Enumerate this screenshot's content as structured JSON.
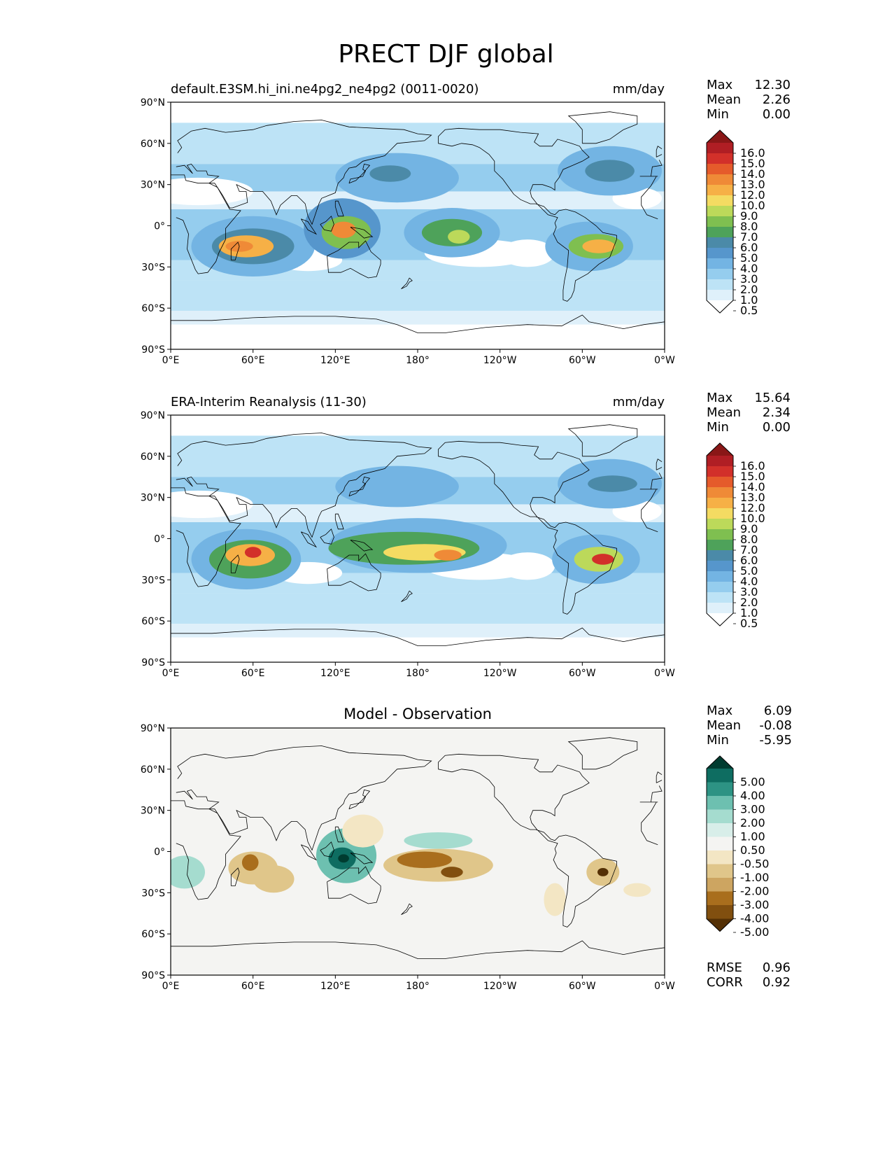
{
  "title": "PRECT DJF global",
  "panels": [
    {
      "id": "model",
      "title_left": "default.E3SM.hi_ini.ne4pg2_ne4pg2 (0011-0020)",
      "title_center": "",
      "units": "mm/day",
      "stats": [
        {
          "label": "Max",
          "value": "12.30"
        },
        {
          "label": "Mean",
          "value": "2.26"
        },
        {
          "label": "Min",
          "value": "0.00"
        }
      ],
      "colorbar": {
        "type": "precip",
        "labels": [
          "16.0",
          "15.0",
          "14.0",
          "13.0",
          "12.0",
          "10.0",
          "9.0",
          "8.0",
          "7.0",
          "6.0",
          "5.0",
          "4.0",
          "3.0",
          "2.0",
          "1.0",
          "0.5"
        ]
      },
      "blobs": [
        {
          "lon": 60,
          "lat": -15,
          "rx": 45,
          "ry": 22,
          "v": 3
        },
        {
          "lon": 60,
          "lat": -15,
          "rx": 30,
          "ry": 13,
          "v": 5.5
        },
        {
          "lon": 55,
          "lat": -15,
          "rx": 20,
          "ry": 8,
          "v": 10
        },
        {
          "lon": 50,
          "lat": -15,
          "rx": 10,
          "ry": 4,
          "v": 12.5
        },
        {
          "lon": 125,
          "lat": -2,
          "rx": 28,
          "ry": 22,
          "v": 4
        },
        {
          "lon": 128,
          "lat": -5,
          "rx": 18,
          "ry": 12,
          "v": 7.5
        },
        {
          "lon": 126,
          "lat": -3,
          "rx": 9,
          "ry": 6,
          "v": 12
        },
        {
          "lon": 205,
          "lat": -5,
          "rx": 35,
          "ry": 18,
          "v": 3.5
        },
        {
          "lon": 205,
          "lat": -5,
          "rx": 22,
          "ry": 10,
          "v": 6.5
        },
        {
          "lon": 210,
          "lat": -8,
          "rx": 8,
          "ry": 5,
          "v": 8.5
        },
        {
          "lon": 305,
          "lat": -15,
          "rx": 32,
          "ry": 18,
          "v": 3.5
        },
        {
          "lon": 310,
          "lat": -15,
          "rx": 20,
          "ry": 9,
          "v": 7
        },
        {
          "lon": 312,
          "lat": -15,
          "rx": 12,
          "ry": 5,
          "v": 11
        },
        {
          "lon": 165,
          "lat": 35,
          "rx": 45,
          "ry": 18,
          "v": 3
        },
        {
          "lon": 160,
          "lat": 38,
          "rx": 15,
          "ry": 6,
          "v": 5
        },
        {
          "lon": 320,
          "lat": 40,
          "rx": 38,
          "ry": 18,
          "v": 3.5
        },
        {
          "lon": 320,
          "lat": 40,
          "rx": 18,
          "ry": 8,
          "v": 5.5
        }
      ]
    },
    {
      "id": "obs",
      "title_left": "ERA-Interim Reanalysis (11-30)",
      "title_center": "",
      "units": "mm/day",
      "stats": [
        {
          "label": "Max",
          "value": "15.64"
        },
        {
          "label": "Mean",
          "value": "2.34"
        },
        {
          "label": "Min",
          "value": "0.00"
        }
      ],
      "colorbar": {
        "type": "precip",
        "labels": [
          "16.0",
          "15.0",
          "14.0",
          "13.0",
          "12.0",
          "10.0",
          "9.0",
          "8.0",
          "7.0",
          "6.0",
          "5.0",
          "4.0",
          "3.0",
          "2.0",
          "1.0",
          "0.5"
        ]
      },
      "blobs": [
        {
          "lon": 55,
          "lat": -15,
          "rx": 40,
          "ry": 22,
          "v": 3
        },
        {
          "lon": 58,
          "lat": -15,
          "rx": 30,
          "ry": 14,
          "v": 6.5
        },
        {
          "lon": 58,
          "lat": -12,
          "rx": 18,
          "ry": 8,
          "v": 11
        },
        {
          "lon": 60,
          "lat": -10,
          "rx": 6,
          "ry": 4,
          "v": 14.5
        },
        {
          "lon": 180,
          "lat": -5,
          "rx": 65,
          "ry": 20,
          "v": 3.5
        },
        {
          "lon": 170,
          "lat": -7,
          "rx": 55,
          "ry": 12,
          "v": 6.5
        },
        {
          "lon": 185,
          "lat": -10,
          "rx": 30,
          "ry": 6,
          "v": 9
        },
        {
          "lon": 202,
          "lat": -12,
          "rx": 10,
          "ry": 4,
          "v": 12
        },
        {
          "lon": 310,
          "lat": -15,
          "rx": 32,
          "ry": 18,
          "v": 3.5
        },
        {
          "lon": 312,
          "lat": -15,
          "rx": 18,
          "ry": 9,
          "v": 8
        },
        {
          "lon": 315,
          "lat": -15,
          "rx": 8,
          "ry": 4,
          "v": 14
        },
        {
          "lon": 165,
          "lat": 38,
          "rx": 45,
          "ry": 15,
          "v": 3
        },
        {
          "lon": 320,
          "lat": 40,
          "rx": 38,
          "ry": 18,
          "v": 3.5
        },
        {
          "lon": 322,
          "lat": 40,
          "rx": 18,
          "ry": 6,
          "v": 5.5
        }
      ]
    },
    {
      "id": "diff",
      "title_left": "",
      "title_center": "Model - Observation",
      "units": "",
      "stats": [
        {
          "label": "Max",
          "value": "6.09"
        },
        {
          "label": "Mean",
          "value": "-0.08"
        },
        {
          "label": "Min",
          "value": "-5.95"
        }
      ],
      "extra_stats": [
        {
          "label": "RMSE",
          "value": "0.96"
        },
        {
          "label": "CORR",
          "value": "0.92"
        }
      ],
      "colorbar": {
        "type": "diff",
        "labels": [
          "5.00",
          "4.00",
          "3.00",
          "2.00",
          "1.00",
          "0.50",
          "-0.50",
          "-1.00",
          "-2.00",
          "-3.00",
          "-4.00",
          "-5.00"
        ]
      },
      "blobs": [
        {
          "lon": 128,
          "lat": -3,
          "rx": 22,
          "ry": 20,
          "v": 2
        },
        {
          "lon": 125,
          "lat": -5,
          "rx": 10,
          "ry": 8,
          "v": 4
        },
        {
          "lon": 126,
          "lat": -5,
          "rx": 4,
          "ry": 3,
          "v": 5.5
        },
        {
          "lon": 195,
          "lat": 8,
          "rx": 25,
          "ry": 6,
          "v": 1.5
        },
        {
          "lon": 10,
          "lat": -15,
          "rx": 15,
          "ry": 12,
          "v": 1
        },
        {
          "lon": 60,
          "lat": -12,
          "rx": 18,
          "ry": 12,
          "v": -1.5
        },
        {
          "lon": 58,
          "lat": -8,
          "rx": 6,
          "ry": 6,
          "v": -3.5
        },
        {
          "lon": 75,
          "lat": -20,
          "rx": 15,
          "ry": 10,
          "v": -1.2
        },
        {
          "lon": 195,
          "lat": -10,
          "rx": 40,
          "ry": 12,
          "v": -1.5
        },
        {
          "lon": 185,
          "lat": -6,
          "rx": 20,
          "ry": 6,
          "v": -3.5
        },
        {
          "lon": 205,
          "lat": -15,
          "rx": 8,
          "ry": 4,
          "v": -4.5
        },
        {
          "lon": 315,
          "lat": -15,
          "rx": 12,
          "ry": 10,
          "v": -2
        },
        {
          "lon": 315,
          "lat": -15,
          "rx": 4,
          "ry": 3,
          "v": -5.5
        },
        {
          "lon": 280,
          "lat": -35,
          "rx": 8,
          "ry": 12,
          "v": -1
        },
        {
          "lon": 340,
          "lat": -28,
          "rx": 10,
          "ry": 5,
          "v": -1
        },
        {
          "lon": 140,
          "lat": 15,
          "rx": 15,
          "ry": 12,
          "v": -1
        }
      ]
    }
  ],
  "axes": {
    "xticks": [
      "0°E",
      "60°E",
      "120°E",
      "180°",
      "120°W",
      "60°W",
      "0°W"
    ],
    "yticks": [
      "90°N",
      "60°N",
      "30°N",
      "0°",
      "30°S",
      "60°S",
      "90°S"
    ]
  },
  "chart_data": [
    {
      "type": "heatmap",
      "title": "default.E3SM.hi_ini.ne4pg2_ne4pg2 (0011-0020)",
      "units": "mm/day",
      "xlim": [
        0,
        360
      ],
      "ylim": [
        -90,
        90
      ],
      "max": 12.3,
      "mean": 2.26,
      "min": 0.0,
      "levels": [
        0.5,
        1,
        2,
        3,
        4,
        5,
        6,
        7,
        8,
        9,
        10,
        12,
        13,
        14,
        15,
        16
      ]
    },
    {
      "type": "heatmap",
      "title": "ERA-Interim Reanalysis (11-30)",
      "units": "mm/day",
      "xlim": [
        0,
        360
      ],
      "ylim": [
        -90,
        90
      ],
      "max": 15.64,
      "mean": 2.34,
      "min": 0.0,
      "levels": [
        0.5,
        1,
        2,
        3,
        4,
        5,
        6,
        7,
        8,
        9,
        10,
        12,
        13,
        14,
        15,
        16
      ]
    },
    {
      "type": "heatmap",
      "title": "Model - Observation",
      "xlim": [
        0,
        360
      ],
      "ylim": [
        -90,
        90
      ],
      "max": 6.09,
      "mean": -0.08,
      "min": -5.95,
      "rmse": 0.96,
      "corr": 0.92,
      "levels": [
        -5,
        -4,
        -3,
        -2,
        -1,
        -0.5,
        0.5,
        1,
        2,
        3,
        4,
        5
      ]
    }
  ],
  "colors": {
    "precip": [
      "#ffffff",
      "#dff0fa",
      "#bde3f6",
      "#95cdee",
      "#73b4e3",
      "#5696cc",
      "#4b8aa8",
      "#4ea25a",
      "#7fbf50",
      "#bcd95a",
      "#f4db62",
      "#f6b046",
      "#ef8a37",
      "#e55b2b",
      "#d2302a",
      "#b01e24",
      "#8a1717"
    ],
    "diff": [
      "#543005",
      "#814f0f",
      "#a96e1d",
      "#cda561",
      "#e0c68a",
      "#f3e6c4",
      "#f4f4f2",
      "#d8eee9",
      "#a5dccf",
      "#6dc0b0",
      "#2d9384",
      "#0e6d61",
      "#003c30"
    ]
  }
}
